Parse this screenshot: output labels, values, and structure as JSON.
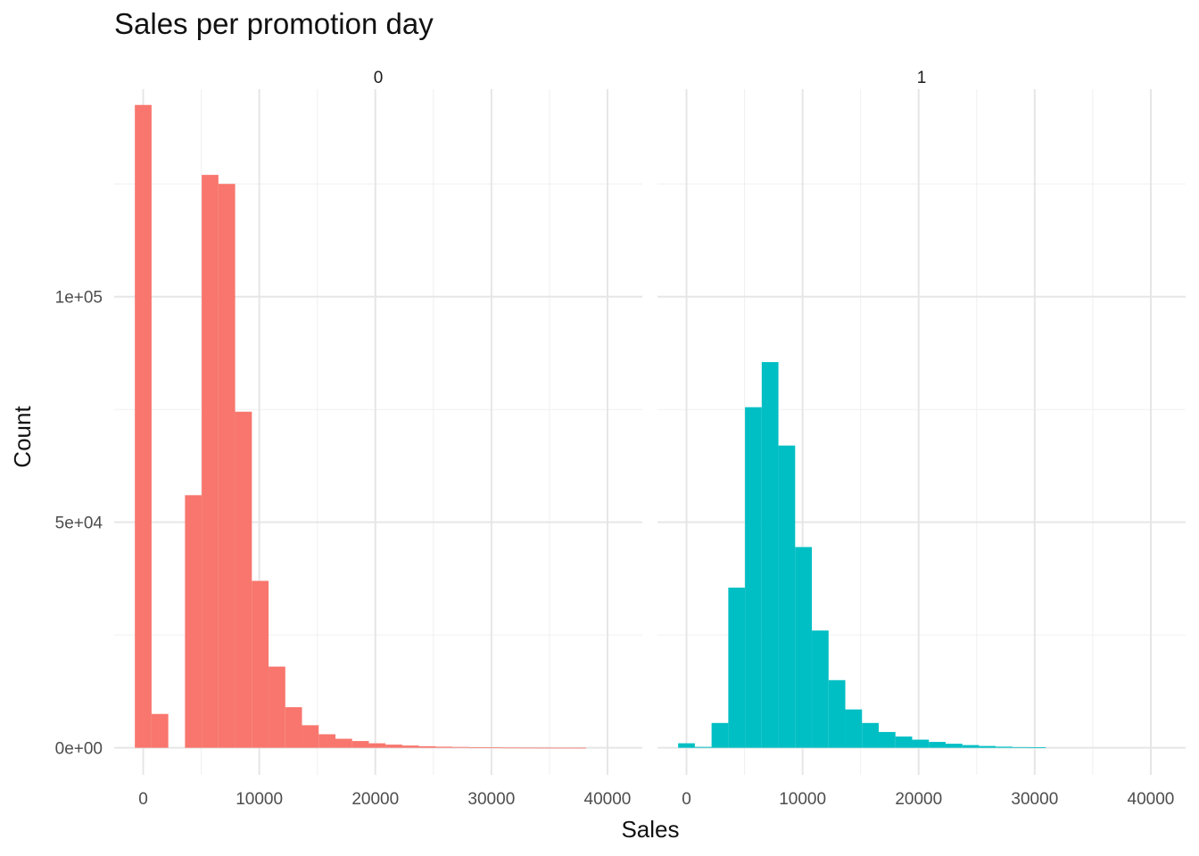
{
  "chart_data": {
    "type": "bar",
    "title": "Sales per promotion day",
    "xlabel": "Sales",
    "ylabel": "Count",
    "facet_variable_values": [
      "0",
      "1"
    ],
    "grid": true,
    "xlim": [
      -2500,
      43000
    ],
    "ylim": [
      -6000,
      146000
    ],
    "x_ticks": [
      0,
      10000,
      20000,
      30000,
      40000
    ],
    "x_tick_labels": [
      "0",
      "10000",
      "20000",
      "30000",
      "40000"
    ],
    "y_ticks": [
      0,
      50000,
      100000
    ],
    "y_tick_labels": [
      "0e+00",
      "5e+04",
      "1e+05"
    ],
    "bin_width": 1440,
    "bin_start": -720,
    "panels": [
      {
        "label": "0",
        "color": "#F8766D",
        "counts": [
          142500,
          7500,
          0,
          56000,
          127000,
          125000,
          74500,
          37000,
          18000,
          9000,
          5000,
          3000,
          2000,
          1500,
          1000,
          700,
          500,
          350,
          250,
          180,
          120,
          80,
          50,
          30,
          20,
          10,
          5,
          0,
          0,
          0
        ]
      },
      {
        "label": "1",
        "color": "#00BFC4",
        "counts": [
          1000,
          200,
          5500,
          35500,
          75500,
          85500,
          67000,
          44500,
          26000,
          15000,
          8500,
          5500,
          3500,
          2500,
          1800,
          1300,
          900,
          600,
          400,
          250,
          150,
          100,
          0,
          0,
          0,
          0,
          0,
          0,
          0,
          0
        ]
      }
    ]
  }
}
